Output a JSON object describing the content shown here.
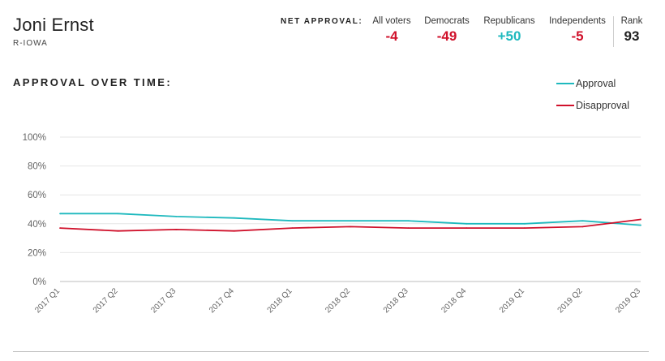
{
  "senator": {
    "name": "Joni Ernst",
    "state": "R-IOWA"
  },
  "net_approval": {
    "label": "NET APPROVAL:",
    "groups": [
      {
        "label": "All voters",
        "value": "-4",
        "color": "#d0112b"
      },
      {
        "label": "Democrats",
        "value": "-49",
        "color": "#d0112b"
      },
      {
        "label": "Republicans",
        "value": "+50",
        "color": "#1fb9be"
      },
      {
        "label": "Independents",
        "value": "-5",
        "color": "#d0112b"
      }
    ],
    "rank": {
      "label": "Rank",
      "value": "93",
      "color": "#222222"
    }
  },
  "chart_data": {
    "type": "line",
    "title": "APPROVAL OVER TIME:",
    "categories": [
      "2017 Q1",
      "2017 Q2",
      "2017 Q3",
      "2017 Q4",
      "2018 Q1",
      "2018 Q2",
      "2018 Q3",
      "2018 Q4",
      "2019 Q1",
      "2019 Q2",
      "2019 Q3"
    ],
    "series": [
      {
        "name": "Approval",
        "color": "#1fb9be",
        "values": [
          47,
          47,
          45,
          44,
          42,
          42,
          42,
          40,
          40,
          42,
          39
        ]
      },
      {
        "name": "Disapproval",
        "color": "#d0112b",
        "values": [
          37,
          35,
          36,
          35,
          37,
          38,
          37,
          37,
          37,
          38,
          43
        ]
      }
    ],
    "ylim": [
      0,
      100
    ],
    "yticks": [
      "0%",
      "20%",
      "40%",
      "60%",
      "80%",
      "100%"
    ],
    "grid": true,
    "legend_position": "top-right"
  }
}
